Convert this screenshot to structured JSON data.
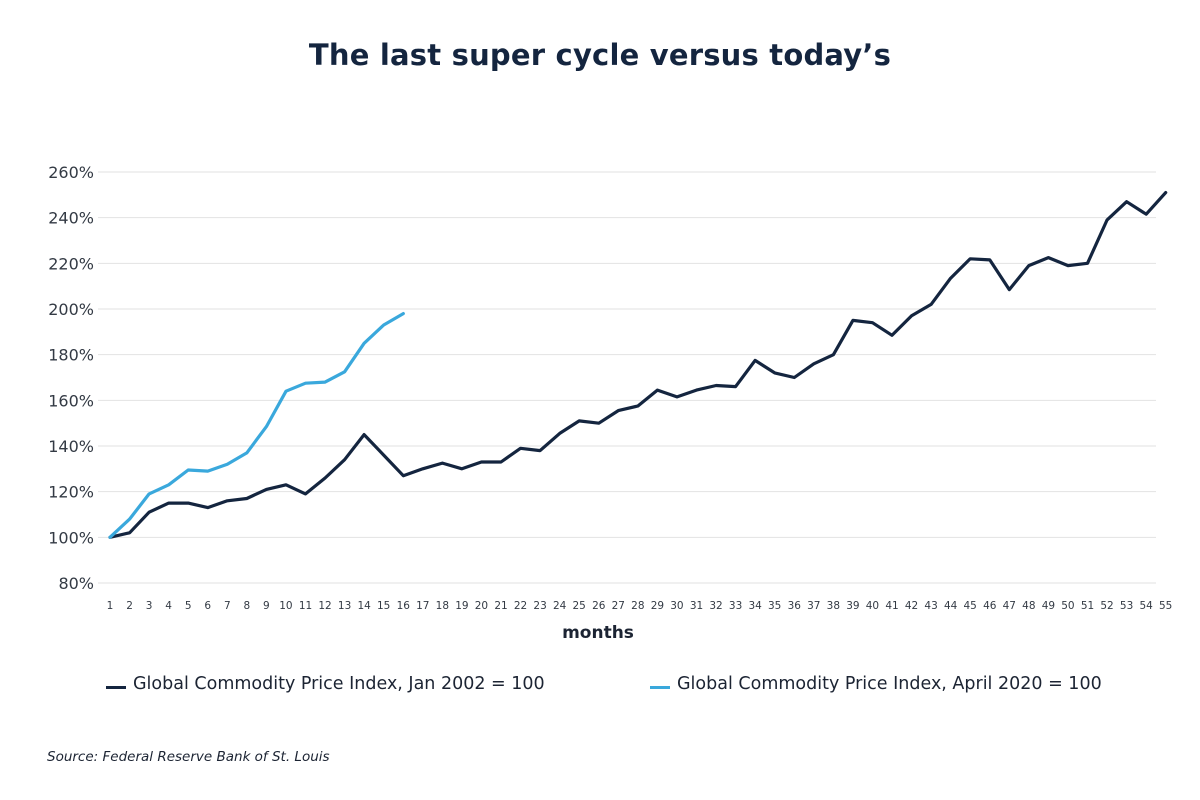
{
  "chart_data": {
    "type": "line",
    "title": "The last super cycle versus today’s",
    "xlabel": "months",
    "ylabel": "",
    "x": [
      1,
      2,
      3,
      4,
      5,
      6,
      7,
      8,
      9,
      10,
      11,
      12,
      13,
      14,
      15,
      16,
      17,
      18,
      19,
      20,
      21,
      22,
      23,
      24,
      25,
      26,
      27,
      28,
      29,
      30,
      31,
      32,
      33,
      34,
      35,
      36,
      37,
      38,
      39,
      40,
      41,
      42,
      43,
      44,
      45,
      46,
      47,
      48,
      49,
      50,
      51,
      52,
      53,
      54,
      55
    ],
    "ylim": [
      80,
      260
    ],
    "yticks": [
      80,
      100,
      120,
      140,
      160,
      180,
      200,
      220,
      240,
      260
    ],
    "ytick_labels": [
      "80%",
      "100%",
      "120%",
      "140%",
      "160%",
      "180%",
      "200%",
      "220%",
      "240%",
      "260%"
    ],
    "grid": true,
    "legend_position": "bottom",
    "series": [
      {
        "name": "Global Commodity Price Index, Jan 2002 = 100",
        "color": "#14253f",
        "values": [
          100,
          102,
          111,
          115,
          115,
          113,
          116,
          117,
          121,
          123,
          119,
          126,
          134,
          145,
          136,
          127,
          130,
          132.5,
          130,
          133,
          133,
          139,
          138,
          145.5,
          151,
          150,
          155.5,
          157.5,
          164.5,
          161.5,
          164.5,
          166.5,
          166,
          177.5,
          172,
          170,
          176,
          180,
          195,
          194,
          188.5,
          197,
          202,
          213.5,
          222,
          221.5,
          208.5,
          219,
          222.5,
          219,
          220,
          239,
          247,
          241.5,
          251
        ]
      },
      {
        "name": "Global Commodity Price Index, April 2020 = 100",
        "color": "#3aa8dc",
        "values": [
          100,
          108,
          119,
          123,
          129.5,
          129,
          132,
          137,
          148.5,
          164,
          167.5,
          168,
          172.5,
          185,
          193,
          198
        ]
      }
    ]
  },
  "source": "Source: Federal Reserve Bank of St. Louis"
}
